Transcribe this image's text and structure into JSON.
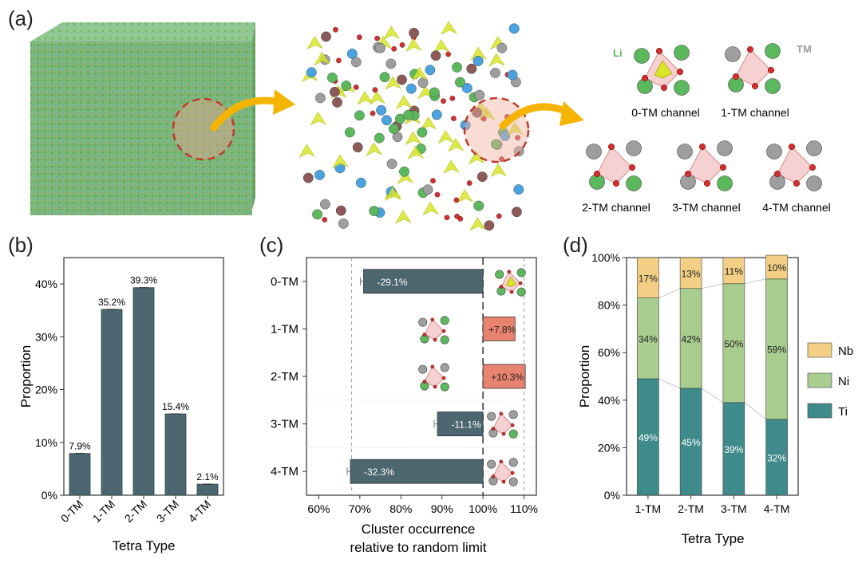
{
  "panel_labels": {
    "a": "(a)",
    "b": "(b)",
    "c": "(c)",
    "d": "(d)"
  },
  "panel_a": {
    "atom_labels": {
      "li": "Li",
      "tm": "TM"
    },
    "channels": [
      "0-TM channel",
      "1-TM channel",
      "2-TM channel",
      "3-TM channel",
      "4-TM channel"
    ],
    "colors": {
      "li": "#5cb85c",
      "tm": "#9e9e9e",
      "o": "#d32f2f",
      "ti": "#4aa3df",
      "nb": "#8d5a5a",
      "tetra": "#d8e62a",
      "arrow": "#f5b400"
    }
  },
  "chart_data": [
    {
      "id": "b",
      "type": "bar",
      "categories": [
        "0-TM",
        "1-TM",
        "2-TM",
        "3-TM",
        "4-TM"
      ],
      "values": [
        7.9,
        35.2,
        39.3,
        15.4,
        2.1
      ],
      "value_labels": [
        "7.9%",
        "35.2%",
        "39.3%",
        "15.4%",
        "2.1%"
      ],
      "xlabel": "Tetra Type",
      "ylabel": "Proportion",
      "ylim": [
        0,
        45
      ],
      "yticks": [
        0,
        10,
        20,
        30,
        40
      ],
      "ytick_labels": [
        "0%",
        "10%",
        "20%",
        "30%",
        "40%"
      ],
      "bar_color": "#4d6770"
    },
    {
      "id": "c",
      "type": "bar",
      "orientation": "horizontal",
      "categories": [
        "0-TM",
        "1-TM",
        "2-TM",
        "3-TM",
        "4-TM"
      ],
      "values": [
        70.9,
        107.8,
        110.3,
        88.9,
        67.7
      ],
      "value_labels": [
        "-29.1%",
        "+7.8%",
        "+10.3%",
        "-11.1%",
        "-32.3%"
      ],
      "baseline": 100,
      "xlabel_lines": [
        "Cluster occurrence",
        "relative to random limit"
      ],
      "xlim": [
        57,
        113
      ],
      "xticks": [
        60,
        70,
        80,
        90,
        100,
        110
      ],
      "xtick_labels": [
        "60%",
        "70%",
        "80%",
        "90%",
        "100%",
        "110%"
      ],
      "positive_color": "#e8836f",
      "negative_color": "#4d6770"
    },
    {
      "id": "d",
      "type": "bar",
      "stacked": true,
      "categories": [
        "1-TM",
        "2-TM",
        "3-TM",
        "4-TM"
      ],
      "series": [
        {
          "name": "Ti",
          "values": [
            49,
            45,
            39,
            32
          ],
          "labels": [
            "49%",
            "45%",
            "39%",
            "32%"
          ],
          "color": "#3f8a8a"
        },
        {
          "name": "Ni",
          "values": [
            34,
            42,
            50,
            59
          ],
          "labels": [
            "34%",
            "42%",
            "50%",
            "59%"
          ],
          "color": "#a9cc8f"
        },
        {
          "name": "Nb",
          "values": [
            17,
            13,
            11,
            10
          ],
          "labels": [
            "17%",
            "13%",
            "11%",
            "10%"
          ],
          "color": "#f2cf85"
        }
      ],
      "xlabel": "Tetra Type",
      "ylabel": "Proportion",
      "ylim": [
        0,
        100
      ],
      "yticks": [
        0,
        20,
        40,
        60,
        80,
        100
      ],
      "ytick_labels": [
        "0%",
        "20%",
        "40%",
        "60%",
        "80%",
        "100%"
      ],
      "legend_position": "right"
    }
  ]
}
